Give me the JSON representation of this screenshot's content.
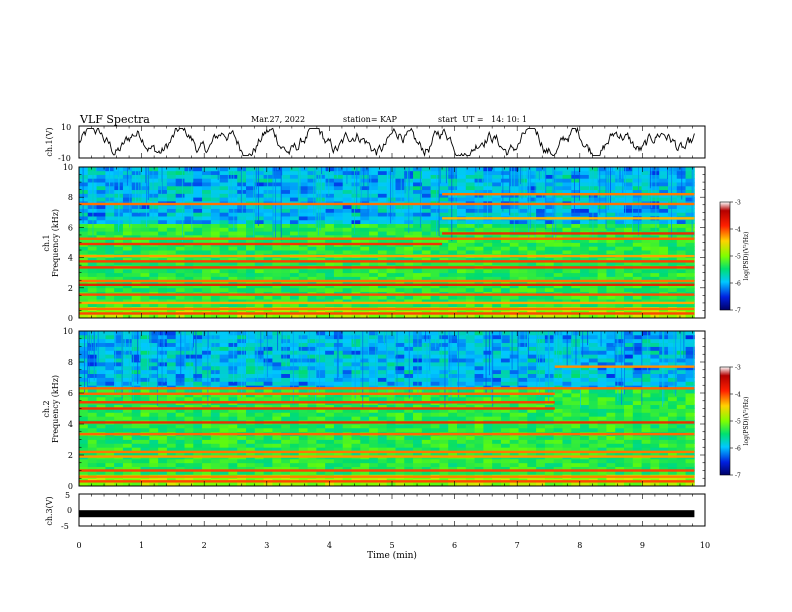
{
  "header": {
    "title": "VLF Spectra",
    "date": "Mar.27, 2022",
    "station": "station= KAP",
    "start_ut": "start  UT =   14: 10: 1"
  },
  "chart_data": [
    {
      "type": "line",
      "name": "ch1-waveform",
      "ylabel": "ch.1(V)",
      "ylim": [
        -10,
        10
      ],
      "ytick_labels": [
        "10",
        "-10"
      ],
      "x_range_min": [
        0,
        9.83
      ]
    },
    {
      "type": "heatmap",
      "name": "ch1-spectrogram",
      "ylabel_lines": [
        "ch.1",
        "Frequency (kHz)"
      ],
      "ylim": [
        0,
        10
      ],
      "yticks": [
        0,
        2,
        4,
        6,
        8,
        10
      ],
      "x_range_min": [
        0,
        9.83
      ],
      "tones_khz": [
        {
          "f": 0.3,
          "from": 0,
          "to": 9.83
        },
        {
          "f": 0.6,
          "from": 0,
          "to": 9.83
        },
        {
          "f": 1.0,
          "from": 0,
          "to": 9.83
        },
        {
          "f": 1.55,
          "from": 0,
          "to": 9.83
        },
        {
          "f": 2.2,
          "from": 0,
          "to": 9.83
        },
        {
          "f": 2.45,
          "from": 0,
          "to": 9.83
        },
        {
          "f": 3.35,
          "from": 0,
          "to": 9.83
        },
        {
          "f": 3.75,
          "from": 0,
          "to": 9.83
        },
        {
          "f": 4.1,
          "from": 0,
          "to": 9.83
        },
        {
          "f": 4.9,
          "from": 0,
          "to": 5.8
        },
        {
          "f": 5.25,
          "from": 0,
          "to": 9.83
        },
        {
          "f": 5.6,
          "from": 5.8,
          "to": 9.83
        },
        {
          "f": 6.6,
          "from": 5.8,
          "to": 9.83
        },
        {
          "f": 7.55,
          "from": 0,
          "to": 9.83
        },
        {
          "f": 8.2,
          "from": 5.8,
          "to": 9.83
        }
      ],
      "colorbar": {
        "label": "log(PSD)(V²/Hz)",
        "range": [
          -7,
          -3
        ],
        "ticks": [
          "-3",
          "-4",
          "-5",
          "-6",
          "-7"
        ]
      }
    },
    {
      "type": "heatmap",
      "name": "ch2-spectrogram",
      "ylabel_lines": [
        "ch.2",
        "Frequency (kHz)"
      ],
      "ylim": [
        0,
        10
      ],
      "yticks": [
        0,
        2,
        4,
        6,
        8,
        10
      ],
      "x_range_min": [
        0,
        9.83
      ],
      "tones_khz": [
        {
          "f": 0.3,
          "from": 0,
          "to": 9.83
        },
        {
          "f": 0.6,
          "from": 0,
          "to": 9.83
        },
        {
          "f": 1.0,
          "from": 0,
          "to": 9.83
        },
        {
          "f": 1.9,
          "from": 0,
          "to": 9.83
        },
        {
          "f": 2.2,
          "from": 0,
          "to": 9.83
        },
        {
          "f": 3.35,
          "from": 0,
          "to": 9.83
        },
        {
          "f": 4.1,
          "from": 0,
          "to": 9.83
        },
        {
          "f": 5.0,
          "from": 0,
          "to": 7.6
        },
        {
          "f": 5.4,
          "from": 0,
          "to": 7.6
        },
        {
          "f": 5.95,
          "from": 0,
          "to": 7.6
        },
        {
          "f": 6.3,
          "from": 0,
          "to": 9.83
        },
        {
          "f": 7.7,
          "from": 7.6,
          "to": 9.83
        }
      ],
      "colorbar": {
        "label": "log(PSD)(V²/Hz)",
        "range": [
          -7,
          -3
        ],
        "ticks": [
          "-3",
          "-4",
          "-5",
          "-6",
          "-7"
        ]
      }
    },
    {
      "type": "line",
      "name": "ch3-signal",
      "ylabel": "ch.3(V)",
      "ylim": [
        -5,
        5
      ],
      "ytick_labels": [
        "5",
        "0",
        "-5"
      ],
      "level": -1,
      "x_range_min": [
        0,
        9.83
      ]
    }
  ],
  "x_axis": {
    "xlabel": "Time (min)",
    "xlim": [
      0,
      10
    ],
    "tick_labels": [
      "0",
      "1",
      "2",
      "3",
      "4",
      "5",
      "6",
      "7",
      "8",
      "9",
      "10"
    ]
  }
}
